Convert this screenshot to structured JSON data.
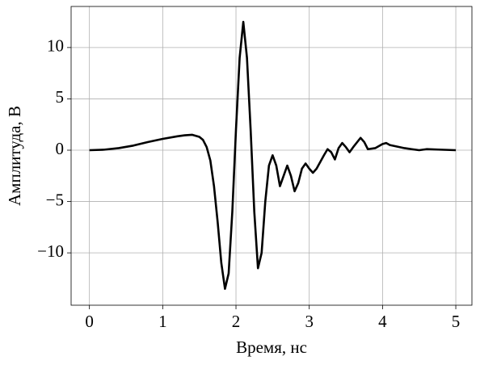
{
  "chart_data": {
    "type": "line",
    "x_label": "Время, нс",
    "y_label": "Амплитуда, В",
    "x": [
      0,
      0.2,
      0.4,
      0.6,
      0.8,
      1.0,
      1.2,
      1.3,
      1.4,
      1.5,
      1.55,
      1.6,
      1.65,
      1.7,
      1.75,
      1.8,
      1.85,
      1.9,
      1.95,
      2.0,
      2.05,
      2.1,
      2.15,
      2.2,
      2.25,
      2.3,
      2.35,
      2.4,
      2.45,
      2.5,
      2.55,
      2.6,
      2.65,
      2.7,
      2.75,
      2.8,
      2.85,
      2.9,
      2.95,
      3.0,
      3.05,
      3.1,
      3.2,
      3.25,
      3.3,
      3.35,
      3.4,
      3.45,
      3.5,
      3.55,
      3.6,
      3.7,
      3.75,
      3.8,
      3.9,
      4.0,
      4.05,
      4.1,
      4.3,
      4.5,
      4.6,
      4.8,
      5.0
    ],
    "series": [
      {
        "color": "#000000",
        "values": [
          0,
          0.05,
          0.2,
          0.45,
          0.8,
          1.1,
          1.35,
          1.45,
          1.5,
          1.3,
          1.0,
          0.3,
          -1.0,
          -3.5,
          -7,
          -11,
          -13.5,
          -12,
          -6,
          2,
          9,
          12.5,
          9,
          2,
          -6,
          -11.5,
          -10,
          -5,
          -1.5,
          -0.5,
          -1.5,
          -3.5,
          -2.5,
          -1.5,
          -2.5,
          -4.0,
          -3.2,
          -1.8,
          -1.3,
          -1.8,
          -2.2,
          -1.8,
          -0.5,
          0.1,
          -0.2,
          -0.9,
          0.2,
          0.7,
          0.3,
          -0.2,
          0.3,
          1.2,
          0.8,
          0.1,
          0.2,
          0.6,
          0.7,
          0.5,
          0.2,
          0.0,
          0.1,
          0.05,
          0.0
        ]
      }
    ],
    "xlim": [
      -0.25,
      5.22
    ],
    "xticks": [
      0,
      1,
      2,
      3,
      4,
      5
    ],
    "ylim": [
      -15.1,
      14.0
    ],
    "yticks": [
      {
        "value": -10,
        "label": "−10"
      },
      {
        "value": -5,
        "label": "−5"
      },
      0,
      5,
      10
    ],
    "grid": true
  }
}
